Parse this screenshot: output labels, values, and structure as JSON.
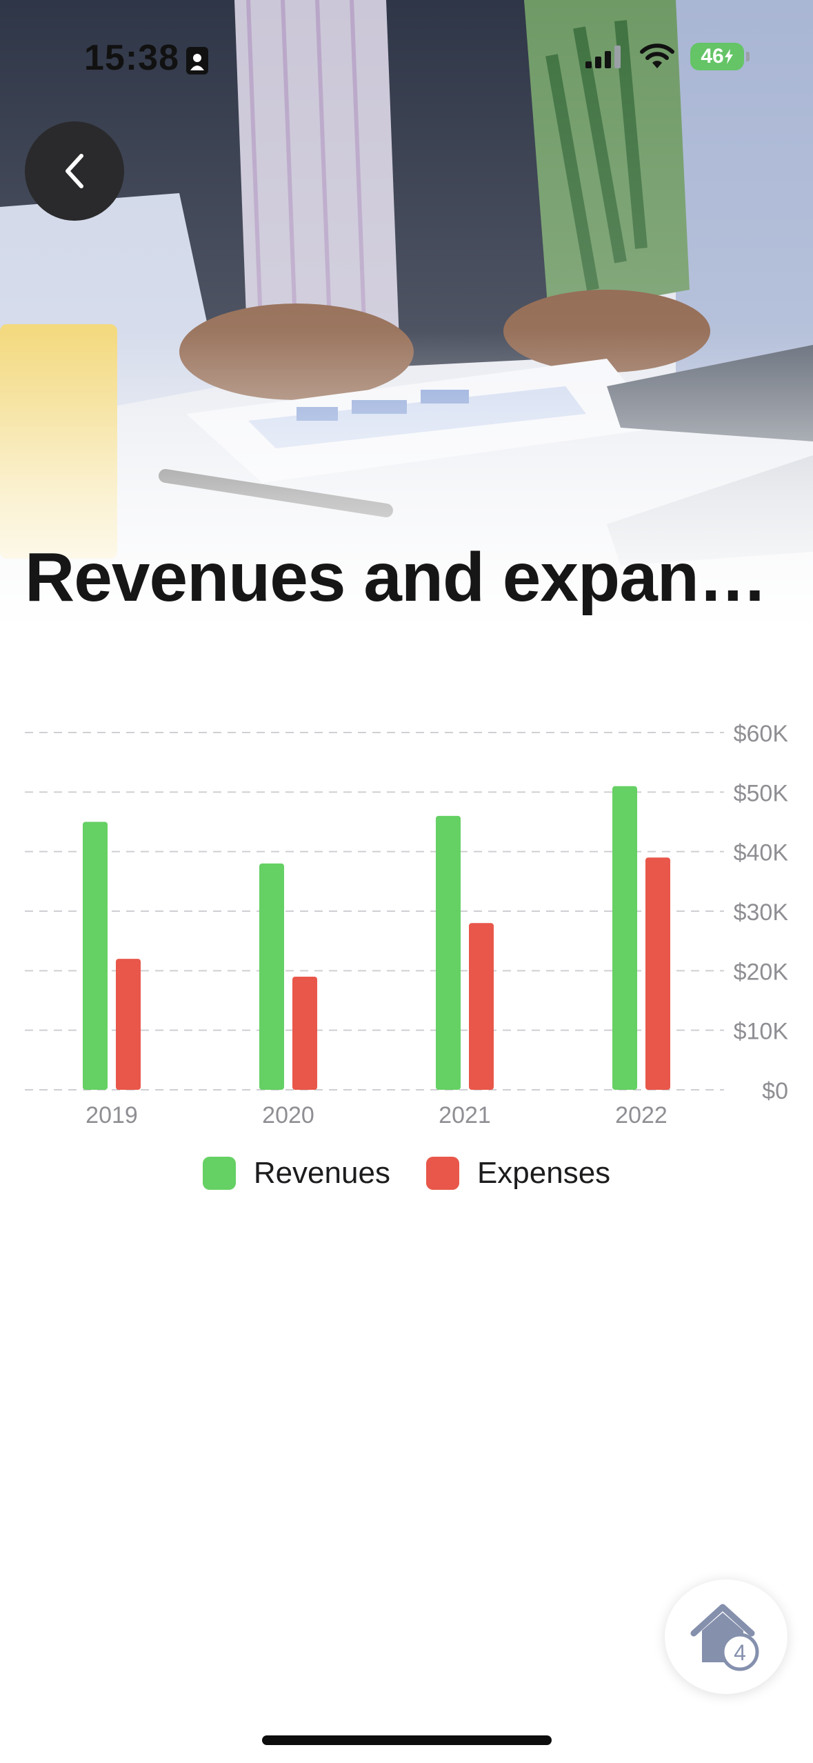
{
  "status_bar": {
    "time": "15:38",
    "battery": "46"
  },
  "header": {
    "title": "Revenues and expans..."
  },
  "back_button": {
    "icon": "chevron-left-icon"
  },
  "chart_data": {
    "type": "bar",
    "categories": [
      "2019",
      "2020",
      "2021",
      "2022"
    ],
    "series": [
      {
        "name": "Revenues",
        "color": "#65d064",
        "values": [
          45000,
          38000,
          46000,
          51000
        ]
      },
      {
        "name": "Expenses",
        "color": "#e8574a",
        "values": [
          22000,
          19000,
          28000,
          39000
        ]
      }
    ],
    "y_ticks": [
      "$0",
      "$10K",
      "$20K",
      "$30K",
      "$40K",
      "$50K",
      "$60K"
    ],
    "ylim": [
      0,
      60000
    ],
    "grid": "dashed horizontal",
    "y_axis_position": "right",
    "legend_position": "bottom"
  },
  "home_button": {
    "icon": "home-icon",
    "badge": "4"
  }
}
